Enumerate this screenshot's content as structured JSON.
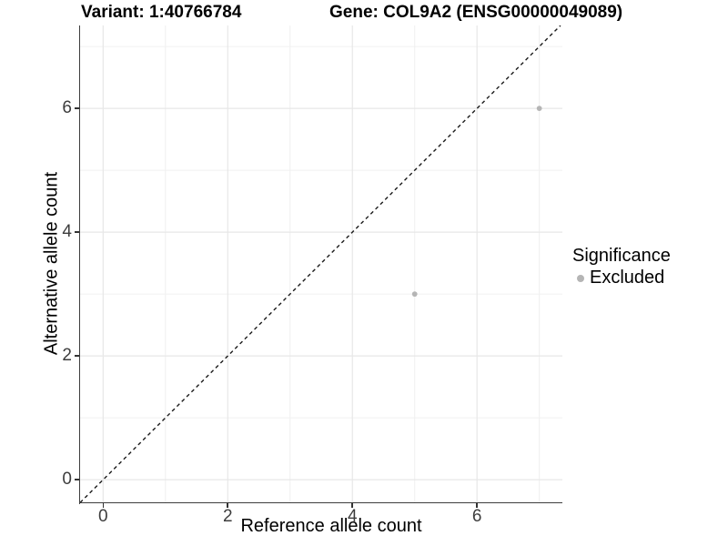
{
  "header": {
    "variant_title": "Variant: 1:40766784",
    "gene_title": "Gene: COL9A2 (ENSG00000049089)"
  },
  "legend": {
    "title": "Significance",
    "items": [
      {
        "label": "Excluded",
        "color": "#b5b5b5"
      }
    ]
  },
  "chart_data": {
    "type": "scatter",
    "title": "Variant: 1:40766784  |  Gene: COL9A2 (ENSG00000049089)",
    "xlabel": "Reference allele count",
    "ylabel": "Alternative allele count",
    "xlim": [
      -0.37,
      7.37
    ],
    "ylim": [
      -0.38,
      7.34
    ],
    "x_ticks": [
      0,
      2,
      4,
      6
    ],
    "y_ticks": [
      0,
      2,
      4,
      6
    ],
    "grid_major": [
      0,
      2,
      4,
      6
    ],
    "grid_minor": [
      1,
      3,
      5,
      7
    ],
    "series": [
      {
        "name": "Excluded",
        "color": "#b5b5b5",
        "points": [
          {
            "x": 5,
            "y": 3
          },
          {
            "x": 7,
            "y": 6
          }
        ]
      }
    ],
    "reference_line": {
      "type": "identity",
      "linestyle": "dashed",
      "color": "#1a1a1a"
    },
    "legend_position": "right",
    "grid": "on"
  },
  "colors": {
    "background": "#ffffff",
    "axis_line": "#3d3d3d",
    "tick_text": "#3d3d3d",
    "grid_major": "#e7e7e7",
    "grid_minor": "#f0f0f0",
    "point": "#b5b5b5"
  }
}
